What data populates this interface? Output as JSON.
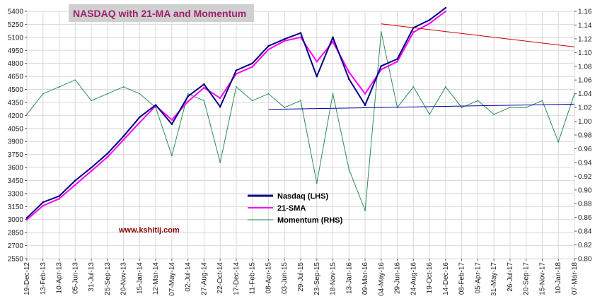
{
  "chart_data": {
    "type": "line",
    "title": "NASDAQ with 21-MA and Momentum",
    "watermark": "www.kshitij.com",
    "xlabel": "",
    "ylabel_left": "",
    "ylabel_right": "",
    "x_tick_labels": [
      "19-Dec-12",
      "13-Feb-13",
      "10-Apr-13",
      "05-Jun-13",
      "31-Jul-13",
      "25-Sep-13",
      "20-Nov-13",
      "15-Jan-14",
      "12-Mar-14",
      "07-May-14",
      "02-Jul-14",
      "27-Aug-14",
      "22-Oct-14",
      "17-Dec-14",
      "11-Feb-15",
      "08-Apr-15",
      "03-Jun-15",
      "29-Jul-15",
      "23-Sep-15",
      "18-Nov-15",
      "13-Jan-16",
      "09-Mar-16",
      "04-May-16",
      "29-Jun-16",
      "24-Aug-16",
      "19-Oct-16",
      "14-Dec-16",
      "08-Feb-17",
      "05-Apr-17",
      "31-May-17",
      "26-Jul-17",
      "20-Sep-17",
      "15-Nov-17",
      "10-Jan-18",
      "07-Mar-18"
    ],
    "y_left_ticks": [
      "2550",
      "2700",
      "2850",
      "3000",
      "3150",
      "3300",
      "3450",
      "3600",
      "3750",
      "3900",
      "4050",
      "4200",
      "4350",
      "4500",
      "4650",
      "4800",
      "4950",
      "5100",
      "5250",
      "5400"
    ],
    "y_left_range": [
      2550,
      5400
    ],
    "y_right_ticks": [
      "0.80",
      "0.82",
      "0.84",
      "0.86",
      "0.88",
      "0.90",
      "0.92",
      "0.94",
      "0.96",
      "0.98",
      "1.00",
      "1.02",
      "1.04",
      "1.06",
      "1.08",
      "1.10",
      "1.12",
      "1.14",
      "1.16"
    ],
    "y_right_range": [
      0.8,
      1.16
    ],
    "grid": true,
    "legend_placement": "center",
    "series": [
      {
        "name": "Nasdaq (LHS)",
        "color": "#000080",
        "axis": "left",
        "x": [
          "19-Dec-12",
          "13-Feb-13",
          "10-Apr-13",
          "05-Jun-13",
          "31-Jul-13",
          "25-Sep-13",
          "20-Nov-13",
          "15-Jan-14",
          "12-Mar-14",
          "07-May-14",
          "02-Jul-14",
          "27-Aug-14",
          "22-Oct-14",
          "17-Dec-14",
          "11-Feb-15",
          "08-Apr-15",
          "03-Jun-15",
          "29-Jul-15",
          "23-Sep-15",
          "18-Nov-15",
          "13-Jan-16",
          "09-Mar-16",
          "04-May-16",
          "29-Jun-16",
          "24-Aug-16",
          "19-Oct-16",
          "14-Dec-16"
        ],
        "values": [
          3020,
          3200,
          3270,
          3450,
          3600,
          3760,
          3960,
          4180,
          4320,
          4100,
          4420,
          4560,
          4300,
          4720,
          4800,
          5000,
          5080,
          5150,
          4650,
          5100,
          4620,
          4320,
          4770,
          4850,
          5210,
          5300,
          5440
        ]
      },
      {
        "name": "21-SMA",
        "color": "#ff00ff",
        "axis": "left",
        "x": [
          "19-Dec-12",
          "13-Feb-13",
          "10-Apr-13",
          "05-Jun-13",
          "31-Jul-13",
          "25-Sep-13",
          "20-Nov-13",
          "15-Jan-14",
          "12-Mar-14",
          "07-May-14",
          "02-Jul-14",
          "27-Aug-14",
          "22-Oct-14",
          "17-Dec-14",
          "11-Feb-15",
          "08-Apr-15",
          "03-Jun-15",
          "29-Jul-15",
          "23-Sep-15",
          "18-Nov-15",
          "13-Jan-16",
          "09-Mar-16",
          "04-May-16",
          "29-Jun-16",
          "24-Aug-16",
          "19-Oct-16",
          "14-Dec-16"
        ],
        "values": [
          3000,
          3160,
          3240,
          3400,
          3560,
          3720,
          3920,
          4120,
          4310,
          4150,
          4360,
          4520,
          4400,
          4680,
          4760,
          4960,
          5060,
          5100,
          4820,
          5050,
          4700,
          4450,
          4730,
          4820,
          5160,
          5260,
          5400
        ]
      },
      {
        "name": "Momentum (RHS)",
        "color": "#2e8b57",
        "axis": "right",
        "x": [
          "19-Dec-12",
          "13-Feb-13",
          "10-Apr-13",
          "05-Jun-13",
          "31-Jul-13",
          "25-Sep-13",
          "20-Nov-13",
          "15-Jan-14",
          "12-Mar-14",
          "07-May-14",
          "02-Jul-14",
          "27-Aug-14",
          "22-Oct-14",
          "17-Dec-14",
          "11-Feb-15",
          "08-Apr-15",
          "03-Jun-15",
          "29-Jul-15",
          "23-Sep-15",
          "18-Nov-15",
          "13-Jan-16",
          "09-Mar-16",
          "04-May-16",
          "29-Jun-16",
          "24-Aug-16",
          "19-Oct-16",
          "14-Dec-16",
          "08-Feb-17",
          "05-Apr-17",
          "31-May-17",
          "26-Jul-17",
          "20-Sep-17",
          "15-Nov-17",
          "10-Jan-18",
          "07-Mar-18"
        ],
        "values": [
          1.01,
          1.04,
          1.05,
          1.06,
          1.03,
          1.04,
          1.05,
          1.04,
          1.02,
          0.95,
          1.04,
          1.03,
          0.94,
          1.05,
          1.03,
          1.04,
          1.02,
          1.03,
          0.91,
          1.04,
          0.93,
          0.87,
          1.13,
          1.02,
          1.05,
          1.01,
          1.05,
          1.02,
          1.03,
          1.01,
          1.02,
          1.02,
          1.03,
          0.97,
          1.04
        ]
      }
    ],
    "trendlines": [
      {
        "color": "#cc0000",
        "from": {
          "x": "04-May-16",
          "y": 5255
        },
        "to": {
          "x": "07-Mar-18",
          "y": 4990
        }
      },
      {
        "color": "#0000aa",
        "from": {
          "x": "08-Apr-15",
          "y": 4270
        },
        "to": {
          "x": "07-Mar-18",
          "y": 4330
        }
      }
    ]
  }
}
